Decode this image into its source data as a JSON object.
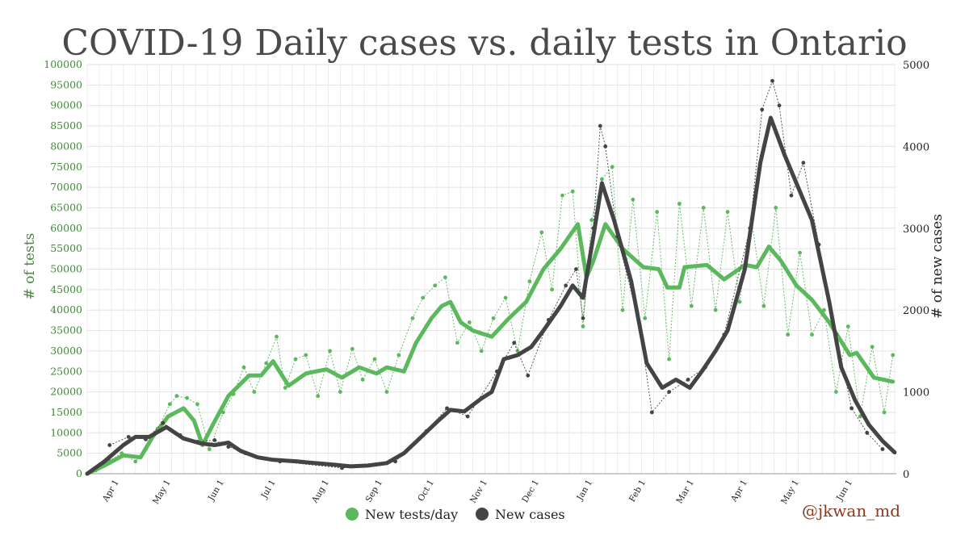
{
  "chart_data": {
    "type": "line",
    "title": "COVID-19 Daily cases vs. daily tests in Ontario",
    "ylabel_left": "# of tests",
    "ylabel_right": "# of new cases",
    "ylim_left": [
      0,
      100000
    ],
    "ylim_right": [
      0,
      5000
    ],
    "yticks_left": [
      "0",
      "5000",
      "10000",
      "15000",
      "20000",
      "25000",
      "30000",
      "35000",
      "40000",
      "45000",
      "50000",
      "55000",
      "60000",
      "65000",
      "70000",
      "75000",
      "80000",
      "85000",
      "90000",
      "95000",
      "100000"
    ],
    "yticks_right": [
      "0",
      "1000",
      "2000",
      "3000",
      "4000",
      "5000"
    ],
    "xtick_labels": [
      "Apr 1",
      "May 1",
      "Jun 1",
      "Jul 1",
      "Aug 1",
      "Sep 1",
      "Oct 1",
      "Nov 1",
      "Dec 1",
      "Jan 1",
      "Feb 1",
      "Mar 1",
      "Apr 1",
      "May 1",
      "Jun 1"
    ],
    "x_start": "2020-03-15",
    "x_end": "2021-06-28",
    "grid": true,
    "legend_position": "bottom-center",
    "colors": {
      "tests": "#5cb85c",
      "cases": "#444444",
      "tick_left": "#3f8a35",
      "credit": "#8b3a22"
    },
    "series": [
      {
        "name": "New tests/day",
        "axis": "left",
        "smoothed_points": [
          [
            "2020-03-15",
            0
          ],
          [
            "2020-03-25",
            2000
          ],
          [
            "2020-04-05",
            4500
          ],
          [
            "2020-04-15",
            4000
          ],
          [
            "2020-04-22",
            9000
          ],
          [
            "2020-05-01",
            14000
          ],
          [
            "2020-05-10",
            16000
          ],
          [
            "2020-05-16",
            13000
          ],
          [
            "2020-05-21",
            7000
          ],
          [
            "2020-05-27",
            12000
          ],
          [
            "2020-06-05",
            19000
          ],
          [
            "2020-06-17",
            24000
          ],
          [
            "2020-06-24",
            24000
          ],
          [
            "2020-07-01",
            27500
          ],
          [
            "2020-07-10",
            21500
          ],
          [
            "2020-07-20",
            24500
          ],
          [
            "2020-08-01",
            25500
          ],
          [
            "2020-08-10",
            23500
          ],
          [
            "2020-08-20",
            26000
          ],
          [
            "2020-08-30",
            24500
          ],
          [
            "2020-09-05",
            26000
          ],
          [
            "2020-09-15",
            25000
          ],
          [
            "2020-09-22",
            32000
          ],
          [
            "2020-10-01",
            38000
          ],
          [
            "2020-10-07",
            41000
          ],
          [
            "2020-10-12",
            42000
          ],
          [
            "2020-10-18",
            37000
          ],
          [
            "2020-10-25",
            35000
          ],
          [
            "2020-11-05",
            33500
          ],
          [
            "2020-11-15",
            38000
          ],
          [
            "2020-11-25",
            42000
          ],
          [
            "2020-12-05",
            50000
          ],
          [
            "2020-12-15",
            55000
          ],
          [
            "2020-12-25",
            61000
          ],
          [
            "2020-12-30",
            48000
          ],
          [
            "2021-01-03",
            52000
          ],
          [
            "2021-01-10",
            61000
          ],
          [
            "2021-01-20",
            55000
          ],
          [
            "2021-02-01",
            50500
          ],
          [
            "2021-02-10",
            50000
          ],
          [
            "2021-02-15",
            45500
          ],
          [
            "2021-02-22",
            45500
          ],
          [
            "2021-02-25",
            50500
          ],
          [
            "2021-03-10",
            51000
          ],
          [
            "2021-03-20",
            47500
          ],
          [
            "2021-04-01",
            51000
          ],
          [
            "2021-04-08",
            50500
          ],
          [
            "2021-04-15",
            55500
          ],
          [
            "2021-04-22",
            52000
          ],
          [
            "2021-05-01",
            46000
          ],
          [
            "2021-05-10",
            42500
          ],
          [
            "2021-05-20",
            37000
          ],
          [
            "2021-06-01",
            29000
          ],
          [
            "2021-06-05",
            29500
          ],
          [
            "2021-06-15",
            23500
          ],
          [
            "2021-06-26",
            22500
          ]
        ],
        "daily_points": [
          [
            "2020-03-20",
            800
          ],
          [
            "2020-03-28",
            3200
          ],
          [
            "2020-04-04",
            5000
          ],
          [
            "2020-04-12",
            3000
          ],
          [
            "2020-04-18",
            6000
          ],
          [
            "2020-04-25",
            11000
          ],
          [
            "2020-05-02",
            17000
          ],
          [
            "2020-05-06",
            19000
          ],
          [
            "2020-05-12",
            18500
          ],
          [
            "2020-05-18",
            17000
          ],
          [
            "2020-05-25",
            6000
          ],
          [
            "2020-06-02",
            15000
          ],
          [
            "2020-06-08",
            19500
          ],
          [
            "2020-06-14",
            26000
          ],
          [
            "2020-06-20",
            20000
          ],
          [
            "2020-06-27",
            27000
          ],
          [
            "2020-07-03",
            33500
          ],
          [
            "2020-07-08",
            21000
          ],
          [
            "2020-07-14",
            28000
          ],
          [
            "2020-07-20",
            29000
          ],
          [
            "2020-07-27",
            19000
          ],
          [
            "2020-08-03",
            30000
          ],
          [
            "2020-08-09",
            20000
          ],
          [
            "2020-08-16",
            30500
          ],
          [
            "2020-08-22",
            23000
          ],
          [
            "2020-08-29",
            28000
          ],
          [
            "2020-09-05",
            20000
          ],
          [
            "2020-09-12",
            29000
          ],
          [
            "2020-09-20",
            38000
          ],
          [
            "2020-09-26",
            43000
          ],
          [
            "2020-10-03",
            46000
          ],
          [
            "2020-10-09",
            48000
          ],
          [
            "2020-10-16",
            32000
          ],
          [
            "2020-10-23",
            37000
          ],
          [
            "2020-10-30",
            30000
          ],
          [
            "2020-11-06",
            38000
          ],
          [
            "2020-11-13",
            43000
          ],
          [
            "2020-11-20",
            30000
          ],
          [
            "2020-11-27",
            47000
          ],
          [
            "2020-12-04",
            59000
          ],
          [
            "2020-12-10",
            45000
          ],
          [
            "2020-12-16",
            68000
          ],
          [
            "2020-12-22",
            69000
          ],
          [
            "2020-12-28",
            36000
          ],
          [
            "2021-01-02",
            62000
          ],
          [
            "2021-01-08",
            72000
          ],
          [
            "2021-01-14",
            75000
          ],
          [
            "2021-01-20",
            40000
          ],
          [
            "2021-01-26",
            67000
          ],
          [
            "2021-02-02",
            38000
          ],
          [
            "2021-02-09",
            64000
          ],
          [
            "2021-02-16",
            28000
          ],
          [
            "2021-02-22",
            66000
          ],
          [
            "2021-03-01",
            41000
          ],
          [
            "2021-03-08",
            65000
          ],
          [
            "2021-03-15",
            40000
          ],
          [
            "2021-03-22",
            64000
          ],
          [
            "2021-03-29",
            42000
          ],
          [
            "2021-04-05",
            62000
          ],
          [
            "2021-04-12",
            41000
          ],
          [
            "2021-04-19",
            65000
          ],
          [
            "2021-04-26",
            34000
          ],
          [
            "2021-05-03",
            54000
          ],
          [
            "2021-05-10",
            34000
          ],
          [
            "2021-05-17",
            40000
          ],
          [
            "2021-05-24",
            20000
          ],
          [
            "2021-05-31",
            36000
          ],
          [
            "2021-06-07",
            14000
          ],
          [
            "2021-06-14",
            31000
          ],
          [
            "2021-06-21",
            15000
          ],
          [
            "2021-06-26",
            29000
          ]
        ]
      },
      {
        "name": "New cases",
        "axis": "right",
        "smoothed_points": [
          [
            "2020-03-15",
            0
          ],
          [
            "2020-03-25",
            150
          ],
          [
            "2020-04-05",
            350
          ],
          [
            "2020-04-12",
            450
          ],
          [
            "2020-04-20",
            450
          ],
          [
            "2020-04-30",
            570
          ],
          [
            "2020-05-10",
            430
          ],
          [
            "2020-05-20",
            370
          ],
          [
            "2020-05-28",
            350
          ],
          [
            "2020-06-05",
            380
          ],
          [
            "2020-06-12",
            280
          ],
          [
            "2020-06-22",
            200
          ],
          [
            "2020-07-01",
            170
          ],
          [
            "2020-07-15",
            150
          ],
          [
            "2020-07-25",
            130
          ],
          [
            "2020-08-05",
            110
          ],
          [
            "2020-08-15",
            90
          ],
          [
            "2020-08-25",
            100
          ],
          [
            "2020-09-05",
            130
          ],
          [
            "2020-09-15",
            250
          ],
          [
            "2020-09-25",
            450
          ],
          [
            "2020-10-05",
            650
          ],
          [
            "2020-10-12",
            780
          ],
          [
            "2020-10-20",
            760
          ],
          [
            "2020-10-30",
            920
          ],
          [
            "2020-11-05",
            1000
          ],
          [
            "2020-11-12",
            1400
          ],
          [
            "2020-11-20",
            1450
          ],
          [
            "2020-11-28",
            1550
          ],
          [
            "2020-12-05",
            1750
          ],
          [
            "2020-12-15",
            2050
          ],
          [
            "2020-12-22",
            2300
          ],
          [
            "2020-12-28",
            2150
          ],
          [
            "2021-01-03",
            2900
          ],
          [
            "2021-01-08",
            3550
          ],
          [
            "2021-01-15",
            3100
          ],
          [
            "2021-01-25",
            2350
          ],
          [
            "2021-02-03",
            1350
          ],
          [
            "2021-02-12",
            1050
          ],
          [
            "2021-02-20",
            1150
          ],
          [
            "2021-02-28",
            1050
          ],
          [
            "2021-03-07",
            1250
          ],
          [
            "2021-03-15",
            1500
          ],
          [
            "2021-03-22",
            1750
          ],
          [
            "2021-04-01",
            2500
          ],
          [
            "2021-04-10",
            3800
          ],
          [
            "2021-04-16",
            4350
          ],
          [
            "2021-04-24",
            3900
          ],
          [
            "2021-05-01",
            3550
          ],
          [
            "2021-05-10",
            3100
          ],
          [
            "2021-05-20",
            2100
          ],
          [
            "2021-05-27",
            1300
          ],
          [
            "2021-06-04",
            900
          ],
          [
            "2021-06-12",
            600
          ],
          [
            "2021-06-20",
            400
          ],
          [
            "2021-06-27",
            260
          ]
        ],
        "daily_points": [
          [
            "2020-03-28",
            350
          ],
          [
            "2020-04-08",
            450
          ],
          [
            "2020-04-18",
            420
          ],
          [
            "2020-04-28",
            620
          ],
          [
            "2020-05-08",
            470
          ],
          [
            "2020-05-18",
            390
          ],
          [
            "2020-05-28",
            410
          ],
          [
            "2020-06-05",
            330
          ],
          [
            "2020-06-15",
            250
          ],
          [
            "2020-07-05",
            150
          ],
          [
            "2020-08-10",
            70
          ],
          [
            "2020-09-10",
            150
          ],
          [
            "2020-09-28",
            520
          ],
          [
            "2020-10-10",
            800
          ],
          [
            "2020-10-22",
            700
          ],
          [
            "2020-11-08",
            1250
          ],
          [
            "2020-11-18",
            1600
          ],
          [
            "2020-11-26",
            1200
          ],
          [
            "2020-12-08",
            1880
          ],
          [
            "2020-12-18",
            2300
          ],
          [
            "2020-12-24",
            2500
          ],
          [
            "2020-12-28",
            1900
          ],
          [
            "2021-01-03",
            3000
          ],
          [
            "2021-01-07",
            4250
          ],
          [
            "2021-01-10",
            4000
          ],
          [
            "2021-01-17",
            2900
          ],
          [
            "2021-01-30",
            1800
          ],
          [
            "2021-02-06",
            750
          ],
          [
            "2021-02-16",
            1000
          ],
          [
            "2021-02-27",
            1150
          ],
          [
            "2021-03-09",
            1300
          ],
          [
            "2021-03-20",
            1700
          ],
          [
            "2021-04-04",
            3000
          ],
          [
            "2021-04-11",
            4450
          ],
          [
            "2021-04-17",
            4800
          ],
          [
            "2021-04-21",
            4500
          ],
          [
            "2021-04-28",
            3400
          ],
          [
            "2021-05-05",
            3800
          ],
          [
            "2021-05-14",
            2800
          ],
          [
            "2021-05-24",
            1700
          ],
          [
            "2021-06-02",
            800
          ],
          [
            "2021-06-11",
            500
          ],
          [
            "2021-06-20",
            300
          ]
        ]
      }
    ]
  },
  "legend": {
    "tests_label": "New tests/day",
    "cases_label": "New cases"
  },
  "credit": "@jkwan_md"
}
